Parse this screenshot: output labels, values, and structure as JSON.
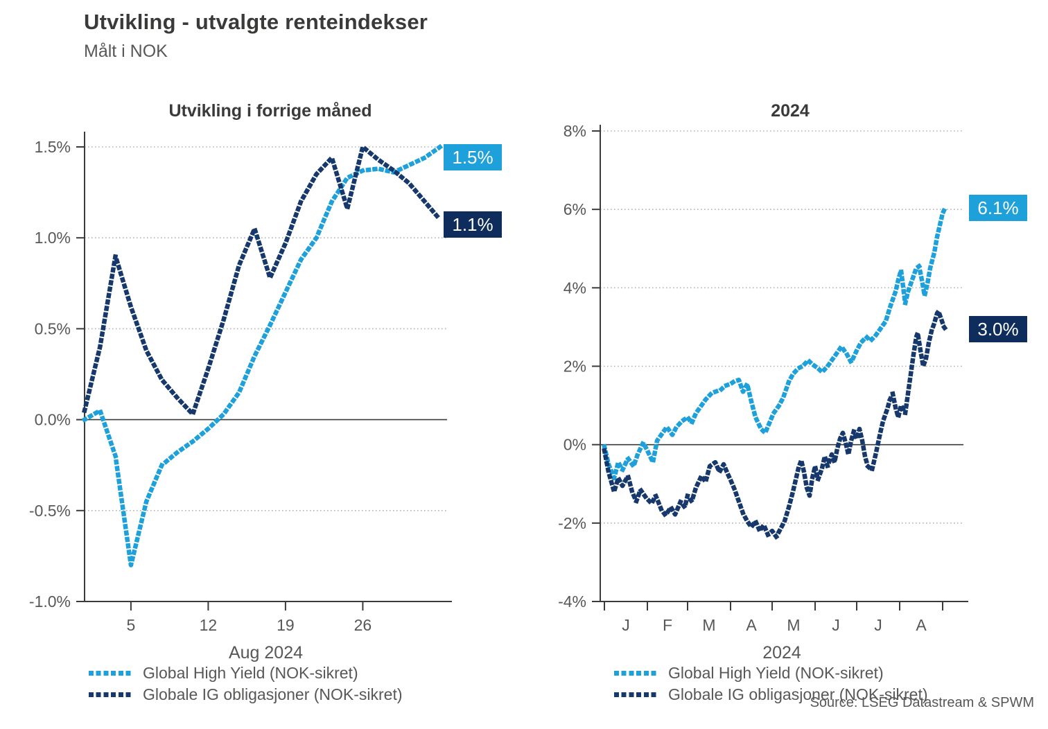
{
  "header": {
    "title": "Utvikling - utvalgte renteindekser",
    "subtitle": "Målt i NOK"
  },
  "source": "Source: LSEG Datastream & SPWM",
  "colors": {
    "high_yield": "#1EA0DB",
    "ig_line": "#16386C",
    "ig_box": "#0E2C5C",
    "hy_box": "#1EA0DB",
    "axis": "#3A3A39",
    "grid": "#B3B3B3",
    "text_gray": "#575756",
    "title_text": "#3A3A39"
  },
  "legend": {
    "items": [
      {
        "label": "Global High Yield (NOK-sikret)",
        "series": "high_yield"
      },
      {
        "label": "Globale IG obligasjoner (NOK-sikret)",
        "series": "ig"
      }
    ]
  },
  "chart_data": [
    {
      "type": "line",
      "title": "Utvikling i forrige måned",
      "xlabel": "Aug 2024",
      "ylabel": "",
      "ylim": [
        -1.0,
        1.5
      ],
      "yticks": [
        1.5,
        1.0,
        0.5,
        0.0,
        -0.5,
        -1.0
      ],
      "ytick_labels": [
        "1.5%",
        "1.0%",
        "0.5%",
        "0.0%",
        "-0.5%",
        "-1.0%"
      ],
      "x_unit": "business-day index, 0 = 31 Jul 2024",
      "xlim": [
        0,
        23
      ],
      "xticks": [
        3,
        8,
        13,
        18
      ],
      "xlabels": [
        {
          "pos": 3,
          "label": "5"
        },
        {
          "pos": 8,
          "label": "12"
        },
        {
          "pos": 13,
          "label": "19"
        },
        {
          "pos": 18,
          "label": "26"
        }
      ],
      "grid": "dotted-horizontal",
      "zero_line": true,
      "legend_position": "bottom",
      "series": [
        {
          "name": "Global High Yield (NOK-sikret)",
          "color_key": "high_yield",
          "end_label": "1.5%",
          "points": [
            [
              0,
              0.0
            ],
            [
              1,
              0.05
            ],
            [
              2,
              -0.2
            ],
            [
              3,
              -0.8
            ],
            [
              4,
              -0.45
            ],
            [
              5,
              -0.25
            ],
            [
              6,
              -0.18
            ],
            [
              7,
              -0.12
            ],
            [
              8,
              -0.05
            ],
            [
              9,
              0.03
            ],
            [
              10,
              0.15
            ],
            [
              11,
              0.35
            ],
            [
              12,
              0.52
            ],
            [
              13,
              0.7
            ],
            [
              14,
              0.88
            ],
            [
              15,
              1.0
            ],
            [
              16,
              1.2
            ],
            [
              17,
              1.33
            ],
            [
              18,
              1.37
            ],
            [
              19,
              1.38
            ],
            [
              20,
              1.36
            ],
            [
              21,
              1.4
            ],
            [
              22,
              1.44
            ],
            [
              23,
              1.5
            ]
          ]
        },
        {
          "name": "Globale IG obligasjoner (NOK-sikret)",
          "color_key": "ig",
          "end_label": "1.1%",
          "points": [
            [
              0,
              0.05
            ],
            [
              1,
              0.4
            ],
            [
              2,
              0.9
            ],
            [
              3,
              0.62
            ],
            [
              4,
              0.38
            ],
            [
              5,
              0.22
            ],
            [
              6,
              0.12
            ],
            [
              7,
              0.03
            ],
            [
              8,
              0.28
            ],
            [
              9,
              0.55
            ],
            [
              10,
              0.85
            ],
            [
              11,
              1.05
            ],
            [
              12,
              0.78
            ],
            [
              13,
              0.97
            ],
            [
              14,
              1.2
            ],
            [
              15,
              1.35
            ],
            [
              16,
              1.44
            ],
            [
              17,
              1.16
            ],
            [
              18,
              1.5
            ],
            [
              19,
              1.43
            ],
            [
              20,
              1.37
            ],
            [
              21,
              1.3
            ],
            [
              22,
              1.2
            ],
            [
              23,
              1.1
            ]
          ]
        }
      ]
    },
    {
      "type": "line",
      "title": "2024",
      "xlabel": "2024",
      "ylabel": "",
      "ylim": [
        -4,
        8
      ],
      "yticks": [
        8,
        6,
        4,
        2,
        0,
        -2,
        -4
      ],
      "ytick_labels": [
        "8%",
        "6%",
        "4%",
        "2%",
        "0%",
        "-2%",
        "-4%"
      ],
      "x_unit": "days since 1 Jan 2024",
      "xlim": [
        0,
        246
      ],
      "xticks": [
        0,
        31,
        60,
        91,
        121,
        152,
        182,
        213,
        244
      ],
      "xlabels": [
        {
          "pos": 15.5,
          "label": "J"
        },
        {
          "pos": 45.5,
          "label": "F"
        },
        {
          "pos": 75.5,
          "label": "M"
        },
        {
          "pos": 106,
          "label": "A"
        },
        {
          "pos": 136.5,
          "label": "M"
        },
        {
          "pos": 167,
          "label": "J"
        },
        {
          "pos": 197.5,
          "label": "J"
        },
        {
          "pos": 228.5,
          "label": "A"
        }
      ],
      "grid": "dotted-horizontal",
      "zero_line": true,
      "legend_position": "bottom",
      "series": [
        {
          "name": "Global High Yield (NOK-sikret)",
          "color_key": "high_yield",
          "end_label": "6.1%",
          "points": [
            [
              0,
              -0.05
            ],
            [
              3,
              -0.5
            ],
            [
              7,
              -0.85
            ],
            [
              10,
              -0.45
            ],
            [
              13,
              -0.65
            ],
            [
              17,
              -0.35
            ],
            [
              21,
              -0.55
            ],
            [
              24,
              -0.25
            ],
            [
              28,
              0.05
            ],
            [
              31,
              -0.15
            ],
            [
              35,
              -0.45
            ],
            [
              38,
              0.1
            ],
            [
              42,
              0.3
            ],
            [
              45,
              0.45
            ],
            [
              49,
              0.25
            ],
            [
              52,
              0.45
            ],
            [
              56,
              0.6
            ],
            [
              60,
              0.7
            ],
            [
              63,
              0.55
            ],
            [
              66,
              0.8
            ],
            [
              70,
              1.0
            ],
            [
              73,
              1.15
            ],
            [
              77,
              1.3
            ],
            [
              80,
              1.35
            ],
            [
              84,
              1.4
            ],
            [
              87,
              1.5
            ],
            [
              91,
              1.55
            ],
            [
              94,
              1.62
            ],
            [
              97,
              1.65
            ],
            [
              100,
              1.35
            ],
            [
              103,
              1.55
            ],
            [
              106,
              1.1
            ],
            [
              109,
              0.7
            ],
            [
              113,
              0.4
            ],
            [
              116,
              0.3
            ],
            [
              119,
              0.55
            ],
            [
              122,
              0.8
            ],
            [
              126,
              1.0
            ],
            [
              129,
              1.2
            ],
            [
              133,
              1.6
            ],
            [
              136,
              1.8
            ],
            [
              140,
              1.95
            ],
            [
              143,
              2.0
            ],
            [
              147,
              2.15
            ],
            [
              150,
              2.05
            ],
            [
              154,
              1.95
            ],
            [
              157,
              1.85
            ],
            [
              161,
              2.0
            ],
            [
              164,
              2.15
            ],
            [
              168,
              2.35
            ],
            [
              171,
              2.5
            ],
            [
              175,
              2.3
            ],
            [
              178,
              2.1
            ],
            [
              182,
              2.4
            ],
            [
              185,
              2.6
            ],
            [
              189,
              2.75
            ],
            [
              192,
              2.65
            ],
            [
              196,
              2.8
            ],
            [
              199,
              2.95
            ],
            [
              203,
              3.15
            ],
            [
              206,
              3.5
            ],
            [
              210,
              3.9
            ],
            [
              212,
              4.2
            ],
            [
              214,
              4.45
            ],
            [
              217,
              3.6
            ],
            [
              219,
              3.9
            ],
            [
              222,
              4.2
            ],
            [
              225,
              4.5
            ],
            [
              227,
              4.55
            ],
            [
              229,
              4.2
            ],
            [
              231,
              3.8
            ],
            [
              233,
              4.1
            ],
            [
              235,
              4.5
            ],
            [
              238,
              4.9
            ],
            [
              240,
              5.3
            ],
            [
              242,
              5.6
            ],
            [
              244,
              5.9
            ],
            [
              246,
              6.05
            ]
          ]
        },
        {
          "name": "Globale IG obligasjoner (NOK-sikret)",
          "color_key": "ig",
          "end_label": "3.0%",
          "points": [
            [
              0,
              -0.15
            ],
            [
              3,
              -0.7
            ],
            [
              7,
              -1.2
            ],
            [
              10,
              -0.85
            ],
            [
              13,
              -1.05
            ],
            [
              17,
              -0.8
            ],
            [
              20,
              -1.2
            ],
            [
              23,
              -1.45
            ],
            [
              26,
              -1.15
            ],
            [
              30,
              -1.35
            ],
            [
              34,
              -1.5
            ],
            [
              37,
              -1.3
            ],
            [
              41,
              -1.65
            ],
            [
              44,
              -1.8
            ],
            [
              48,
              -1.6
            ],
            [
              51,
              -1.78
            ],
            [
              55,
              -1.45
            ],
            [
              58,
              -1.6
            ],
            [
              60,
              -1.3
            ],
            [
              63,
              -1.45
            ],
            [
              66,
              -1.1
            ],
            [
              70,
              -0.8
            ],
            [
              73,
              -0.95
            ],
            [
              76,
              -0.55
            ],
            [
              80,
              -0.45
            ],
            [
              83,
              -0.7
            ],
            [
              86,
              -0.5
            ],
            [
              89,
              -0.75
            ],
            [
              91,
              -0.9
            ],
            [
              94,
              -1.15
            ],
            [
              97,
              -1.45
            ],
            [
              100,
              -1.75
            ],
            [
              103,
              -1.95
            ],
            [
              106,
              -2.1
            ],
            [
              109,
              -1.95
            ],
            [
              112,
              -2.2
            ],
            [
              115,
              -2.05
            ],
            [
              118,
              -2.3
            ],
            [
              121,
              -2.2
            ],
            [
              124,
              -2.35
            ],
            [
              127,
              -2.15
            ],
            [
              130,
              -1.95
            ],
            [
              133,
              -1.6
            ],
            [
              136,
              -1.2
            ],
            [
              138,
              -0.9
            ],
            [
              140,
              -0.6
            ],
            [
              142,
              -0.4
            ],
            [
              144,
              -0.7
            ],
            [
              146,
              -1.1
            ],
            [
              148,
              -1.3
            ],
            [
              150,
              -0.85
            ],
            [
              152,
              -0.55
            ],
            [
              154,
              -0.9
            ],
            [
              157,
              -0.6
            ],
            [
              159,
              -0.3
            ],
            [
              161,
              -0.55
            ],
            [
              164,
              -0.25
            ],
            [
              166,
              -0.45
            ],
            [
              168,
              -0.1
            ],
            [
              170,
              0.15
            ],
            [
              172,
              0.3
            ],
            [
              174,
              0.05
            ],
            [
              176,
              -0.25
            ],
            [
              178,
              0.1
            ],
            [
              180,
              0.35
            ],
            [
              182,
              0.15
            ],
            [
              184,
              0.4
            ],
            [
              186,
              0.1
            ],
            [
              188,
              -0.3
            ],
            [
              190,
              -0.55
            ],
            [
              193,
              -0.65
            ],
            [
              196,
              -0.2
            ],
            [
              199,
              0.3
            ],
            [
              201,
              0.6
            ],
            [
              204,
              0.9
            ],
            [
              206,
              1.15
            ],
            [
              208,
              1.3
            ],
            [
              210,
              0.95
            ],
            [
              212,
              0.7
            ],
            [
              214,
              1.0
            ],
            [
              217,
              0.8
            ],
            [
              219,
              1.3
            ],
            [
              221,
              1.8
            ],
            [
              223,
              2.3
            ],
            [
              225,
              2.75
            ],
            [
              226,
              2.85
            ],
            [
              228,
              2.4
            ],
            [
              230,
              2.0
            ],
            [
              232,
              2.2
            ],
            [
              234,
              2.6
            ],
            [
              236,
              2.9
            ],
            [
              238,
              3.1
            ],
            [
              240,
              3.35
            ],
            [
              241,
              3.4
            ],
            [
              243,
              3.2
            ],
            [
              245,
              3.0
            ],
            [
              246,
              2.95
            ]
          ]
        }
      ]
    }
  ]
}
